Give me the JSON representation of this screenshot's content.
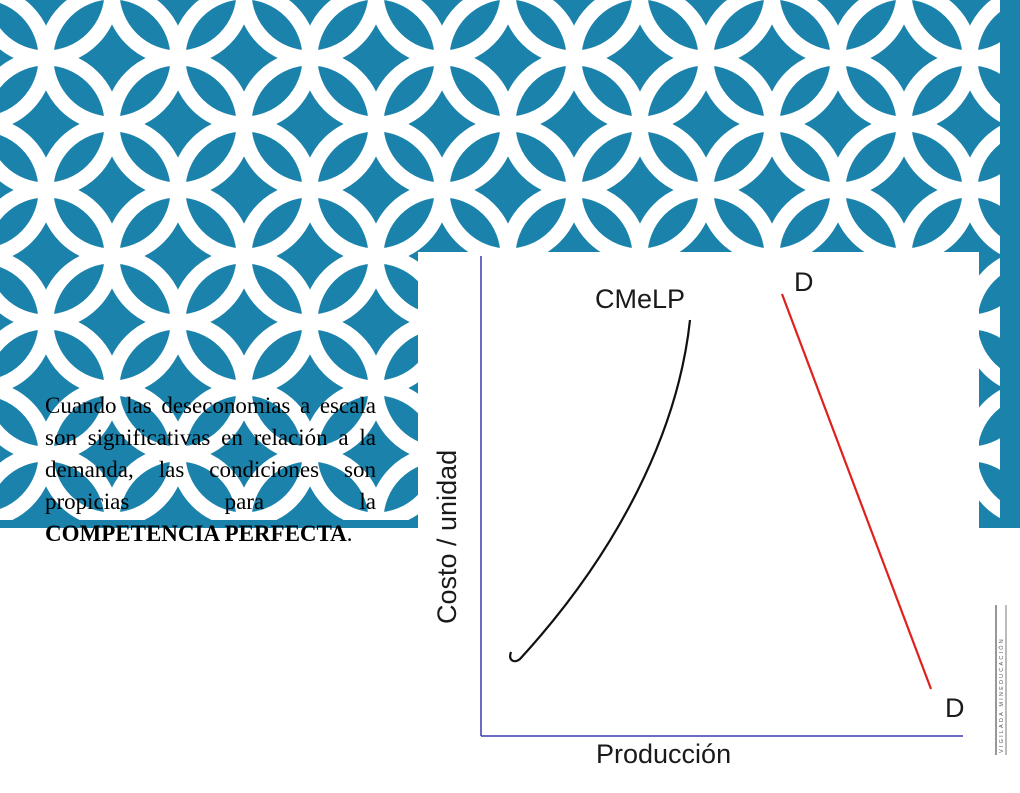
{
  "slide": {
    "text_before": "Cuando las deseconomias a escala son significativas en relación a la demanda, las condiciones son propicias para la ",
    "text_bold": "COMPETENCIA PERFECTA",
    "text_after": "."
  },
  "chart": {
    "ylabel": "Costo / unidad",
    "xlabel": "Producción",
    "curve_label": "CMeLP",
    "demand_label_top": "D",
    "demand_label_bottom": "D",
    "colors": {
      "axis": "#3a3ab0",
      "curve": "#111111",
      "demand": "#e0201c"
    }
  },
  "watermark": {
    "text": "VIGILADA MINEDUCACIÓN"
  },
  "colors": {
    "banner": "#1a82ab",
    "pattern": "#ffffff"
  }
}
